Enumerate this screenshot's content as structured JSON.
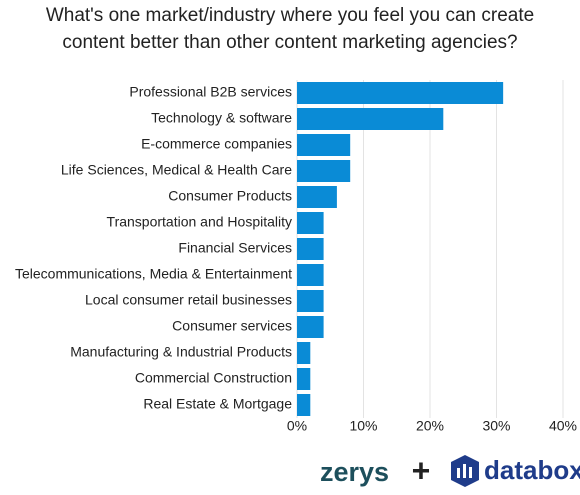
{
  "chart_data": {
    "type": "hbar",
    "title": "What's one market/industry where you feel you can create content better than other content marketing agencies?",
    "categories": [
      "Professional B2B services",
      "Technology & software",
      "E-commerce companies",
      "Life Sciences, Medical & Health Care",
      "Consumer Products",
      "Transportation and Hospitality",
      "Financial Services",
      "Telecommunications, Media & Entertainment",
      "Local consumer retail businesses",
      "Consumer services",
      "Manufacturing & Industrial Products",
      "Commercial Construction",
      "Real Estate & Mortgage"
    ],
    "values": [
      31,
      22,
      8,
      8,
      6,
      4,
      4,
      4,
      4,
      4,
      2,
      2,
      2
    ],
    "color": "#0a8bd6",
    "xlim": [
      0,
      40
    ],
    "xticks": [
      {
        "value": 0,
        "label": "0%"
      },
      {
        "value": 10,
        "label": "10%"
      },
      {
        "value": 20,
        "label": "20%"
      },
      {
        "value": 30,
        "label": "30%"
      },
      {
        "value": 40,
        "label": "40%"
      }
    ],
    "grid": true
  },
  "branding": {
    "left": "zerys",
    "joiner": "+",
    "right": "databox"
  }
}
